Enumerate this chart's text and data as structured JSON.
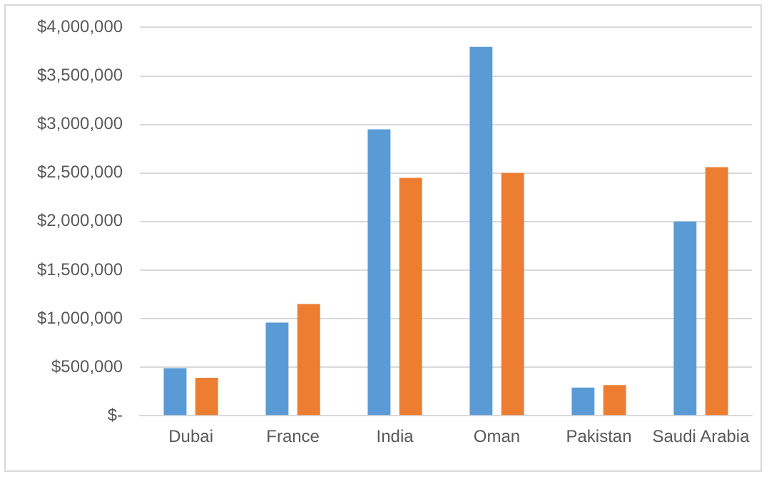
{
  "chart_data": {
    "type": "bar",
    "categories": [
      "Dubai",
      "France",
      "India",
      "Oman",
      "Pakistan",
      "Saudi Arabia"
    ],
    "series": [
      {
        "color": "#5b9bd5",
        "values": [
          490000,
          960000,
          2950000,
          3800000,
          290000,
          2000000
        ]
      },
      {
        "color": "#ed7d31",
        "values": [
          390000,
          1150000,
          2450000,
          2500000,
          315000,
          2560000
        ]
      }
    ],
    "ylim": [
      0,
      4000000
    ],
    "yticks": [
      {
        "value": 0,
        "label": "$-"
      },
      {
        "value": 500000,
        "label": "$500,000"
      },
      {
        "value": 1000000,
        "label": "$1,000,000"
      },
      {
        "value": 1500000,
        "label": "$1,500,000"
      },
      {
        "value": 2000000,
        "label": "$2,000,000"
      },
      {
        "value": 2500000,
        "label": "$2,500,000"
      },
      {
        "value": 3000000,
        "label": "$3,000,000"
      },
      {
        "value": 3500000,
        "label": "$3,500,000"
      },
      {
        "value": 4000000,
        "label": "$4,000,000"
      }
    ],
    "grid": "y",
    "legend": false
  }
}
